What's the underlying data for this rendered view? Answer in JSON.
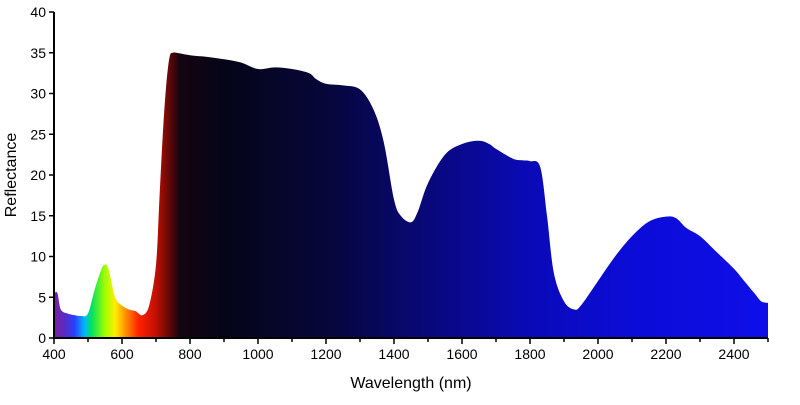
{
  "chart_data": {
    "type": "area",
    "title": "",
    "xlabel": "Wavelength (nm)",
    "ylabel": "Reflectance",
    "xlim": [
      400,
      2500
    ],
    "ylim": [
      0,
      40
    ],
    "x_ticks": [
      400,
      600,
      800,
      1000,
      1200,
      1400,
      1600,
      1800,
      2000,
      2200,
      2400
    ],
    "y_ticks": [
      0,
      5,
      10,
      15,
      20,
      25,
      30,
      35,
      40
    ],
    "grid": false,
    "legend": "none",
    "fill": "spectral gradient (violet-blue-green-yellow-red in visible range, black at near-infrared, deepening to blue toward 2500 nm)",
    "series": [
      {
        "x": [
          400,
          410,
          420,
          440,
          460,
          480,
          500,
          520,
          540,
          550,
          560,
          580,
          600,
          620,
          640,
          660,
          680,
          700,
          710,
          720,
          730,
          740,
          750,
          760,
          800,
          850,
          900,
          950,
          1000,
          1050,
          1100,
          1150,
          1170,
          1200,
          1250,
          1300,
          1340,
          1370,
          1400,
          1420,
          1450,
          1470,
          1500,
          1550,
          1600,
          1650,
          1680,
          1700,
          1750,
          1780,
          1800,
          1830,
          1850,
          1870,
          1900,
          1930,
          1950,
          2000,
          2050,
          2100,
          2150,
          2200,
          2230,
          2260,
          2300,
          2350,
          2400,
          2430,
          2460,
          2480,
          2500
        ],
        "y": [
          5.5,
          5.5,
          3.5,
          3.0,
          2.8,
          2.7,
          3.0,
          6.0,
          8.5,
          9.0,
          8.5,
          5.0,
          4.0,
          3.5,
          3.3,
          2.8,
          4.0,
          9.0,
          17.0,
          25.0,
          31.0,
          34.5,
          35.0,
          35.0,
          34.7,
          34.5,
          34.2,
          33.8,
          33.0,
          33.2,
          33.0,
          32.5,
          31.8,
          31.2,
          31.0,
          30.5,
          28.0,
          24.0,
          17.0,
          15.0,
          14.2,
          15.5,
          19.0,
          22.5,
          23.8,
          24.2,
          23.8,
          23.2,
          22.0,
          21.8,
          21.7,
          21.0,
          15.0,
          8.0,
          4.5,
          3.5,
          4.0,
          7.0,
          10.0,
          12.5,
          14.3,
          14.9,
          14.7,
          13.5,
          12.5,
          10.5,
          8.5,
          7.0,
          5.5,
          4.5,
          4.3
        ]
      }
    ]
  }
}
